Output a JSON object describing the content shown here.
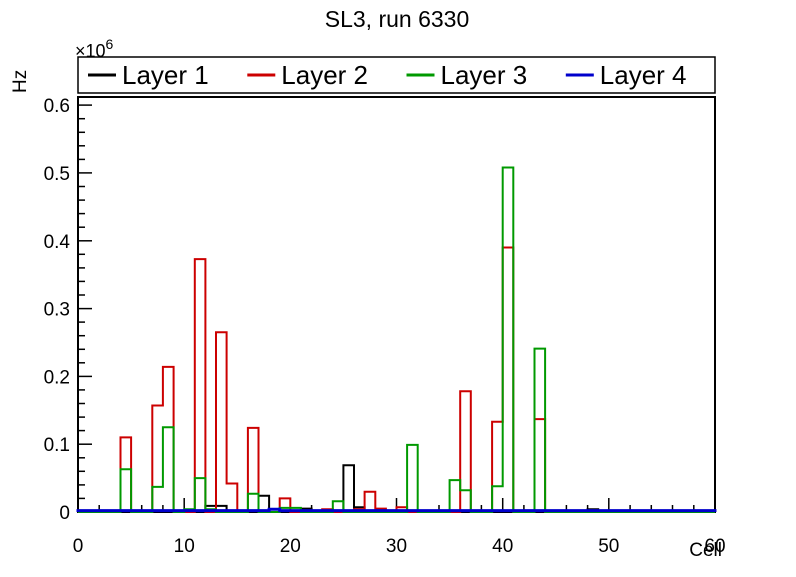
{
  "page": {
    "background": "#ffffff"
  },
  "chart_data": {
    "type": "bar",
    "histogram_style": "step-outline",
    "title": "SL3, run 6330",
    "xlabel": "Cell",
    "ylabel": "Hz",
    "y_scale_exponent": {
      "base": "×10",
      "power": "6"
    },
    "xlim": [
      0,
      60
    ],
    "ylim": [
      0,
      612000
    ],
    "bin_width": 1,
    "grid": false,
    "x_major_ticks": [
      {
        "value": 0,
        "label": "0"
      },
      {
        "value": 10,
        "label": "10"
      },
      {
        "value": 20,
        "label": "20"
      },
      {
        "value": 30,
        "label": "30"
      },
      {
        "value": 40,
        "label": "40"
      },
      {
        "value": 50,
        "label": "50"
      },
      {
        "value": 60,
        "label": "60"
      }
    ],
    "x_minor_tick_step": 2,
    "y_major_ticks": [
      {
        "value": 0,
        "label": "0"
      },
      {
        "value": 100000,
        "label": "0.1"
      },
      {
        "value": 200000,
        "label": "0.2"
      },
      {
        "value": 300000,
        "label": "0.3"
      },
      {
        "value": 400000,
        "label": "0.4"
      },
      {
        "value": 500000,
        "label": "0.5"
      },
      {
        "value": 600000,
        "label": "0.6"
      }
    ],
    "y_minor_tick_step": 20000,
    "legend": {
      "position": "top",
      "entries": [
        {
          "label": "Layer 1",
          "color": "#000000"
        },
        {
          "label": "Layer 2",
          "color": "#cc0000"
        },
        {
          "label": "Layer 3",
          "color": "#009900"
        },
        {
          "label": "Layer 4",
          "color": "#0000cc"
        }
      ]
    },
    "series": [
      {
        "name": "Layer 1",
        "color": "#000000",
        "baseline": 0,
        "line_width": 2,
        "bins": [
          [
            12,
            9000
          ],
          [
            13,
            9000
          ],
          [
            17,
            24000
          ],
          [
            21,
            5000
          ],
          [
            25,
            69000
          ],
          [
            26,
            7000
          ],
          [
            48,
            4000
          ]
        ]
      },
      {
        "name": "Layer 2",
        "color": "#cc0000",
        "baseline": 0,
        "line_width": 2,
        "bins": [
          [
            4,
            110000
          ],
          [
            7,
            157000
          ],
          [
            8,
            214000
          ],
          [
            11,
            373000
          ],
          [
            13,
            265000
          ],
          [
            14,
            42000
          ],
          [
            15,
            2000
          ],
          [
            16,
            124000
          ],
          [
            17,
            2000
          ],
          [
            19,
            20000
          ],
          [
            23,
            4000
          ],
          [
            26,
            4000
          ],
          [
            27,
            30000
          ],
          [
            28,
            5000
          ],
          [
            30,
            7000
          ],
          [
            36,
            178000
          ],
          [
            39,
            133000
          ],
          [
            40,
            390000
          ],
          [
            43,
            137000
          ]
        ]
      },
      {
        "name": "Layer 3",
        "color": "#009900",
        "baseline": 0,
        "line_width": 2,
        "bins": [
          [
            4,
            63000
          ],
          [
            7,
            37000
          ],
          [
            8,
            125000
          ],
          [
            10,
            4000
          ],
          [
            11,
            50000
          ],
          [
            12,
            4000
          ],
          [
            16,
            27000
          ],
          [
            19,
            6000
          ],
          [
            20,
            6000
          ],
          [
            24,
            16000
          ],
          [
            31,
            99000
          ],
          [
            35,
            47000
          ],
          [
            36,
            32000
          ],
          [
            39,
            38000
          ],
          [
            40,
            508000
          ],
          [
            43,
            241000
          ]
        ]
      },
      {
        "name": "Layer 4",
        "color": "#0000cc",
        "baseline": 2000,
        "line_width": 3,
        "bins": [
          [
            18,
            4000
          ]
        ]
      }
    ]
  }
}
